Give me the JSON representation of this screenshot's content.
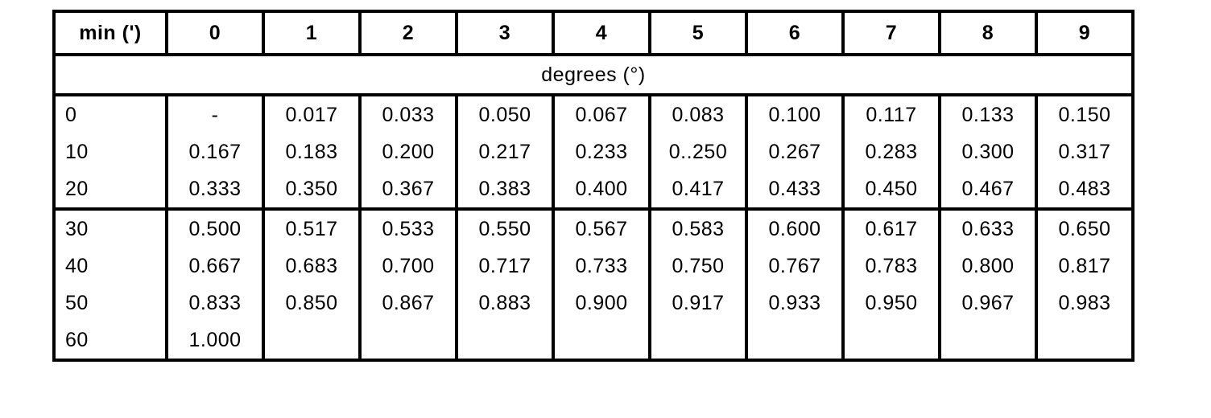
{
  "page": {
    "background_color": "#ffffff",
    "line_color": "#000000",
    "text_color": "#000000"
  },
  "table": {
    "column_headers": [
      "min (')",
      "0",
      "1",
      "2",
      "3",
      "4",
      "5",
      "6",
      "7",
      "8",
      "9"
    ],
    "unit_row_label": "degrees (°)",
    "groups": [
      {
        "rows": [
          {
            "label": "0",
            "values": [
              "-",
              "0.017",
              "0.033",
              "0.050",
              "0.067",
              "0.083",
              "0.100",
              "0.117",
              "0.133",
              "0.150"
            ]
          },
          {
            "label": "10",
            "values": [
              "0.167",
              "0.183",
              "0.200",
              "0.217",
              "0.233",
              "0..250",
              "0.267",
              "0.283",
              "0.300",
              "0.317"
            ]
          },
          {
            "label": "20",
            "values": [
              "0.333",
              "0.350",
              "0.367",
              "0.383",
              "0.400",
              "0.417",
              "0.433",
              "0.450",
              "0.467",
              "0.483"
            ]
          }
        ]
      },
      {
        "rows": [
          {
            "label": "30",
            "values": [
              "0.500",
              "0.517",
              "0.533",
              "0.550",
              "0.567",
              "0.583",
              "0.600",
              "0.617",
              "0.633",
              "0.650"
            ]
          },
          {
            "label": "40",
            "values": [
              "0.667",
              "0.683",
              "0.700",
              "0.717",
              "0.733",
              "0.750",
              "0.767",
              "0.783",
              "0.800",
              "0.817"
            ]
          },
          {
            "label": "50",
            "values": [
              "0.833",
              "0.850",
              "0.867",
              "0.883",
              "0.900",
              "0.917",
              "0.933",
              "0.950",
              "0.967",
              "0.983"
            ]
          },
          {
            "label": "60",
            "values": [
              "1.000",
              "",
              "",
              "",
              "",
              "",
              "",
              "",
              "",
              ""
            ]
          }
        ]
      }
    ]
  }
}
